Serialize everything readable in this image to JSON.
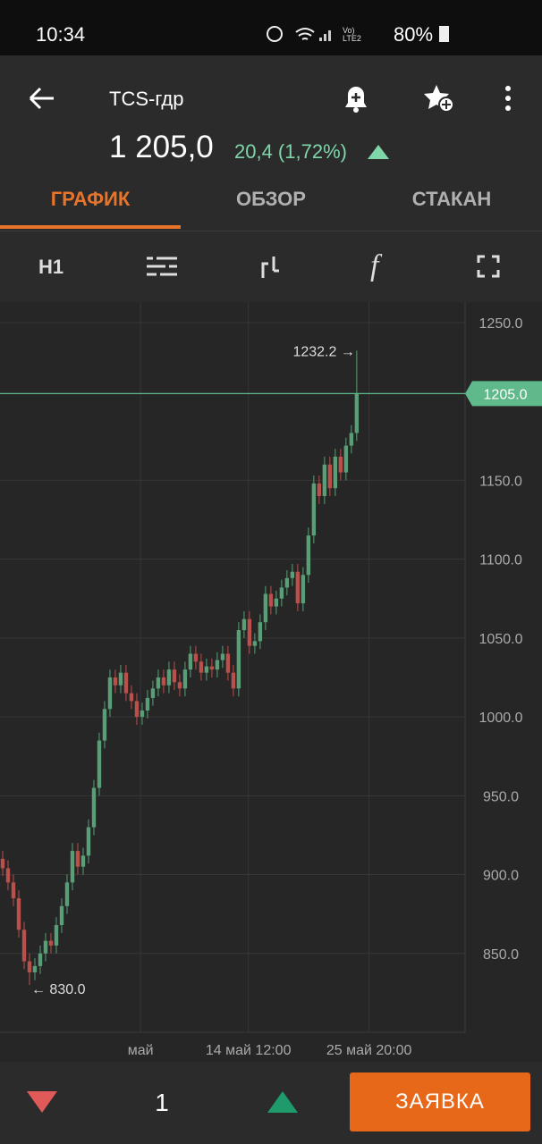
{
  "status_bar": {
    "time": "10:34",
    "network": "Vo) LTE2",
    "battery": "80%"
  },
  "header": {
    "title": "TCS-гдр",
    "price": "1 205,0",
    "change": "20,4 (1,72%)"
  },
  "tabs": [
    "ГРАФИК",
    "ОБЗОР",
    "СТАКАН"
  ],
  "toolbar": {
    "interval": "H1"
  },
  "chart_data": {
    "type": "candlestick",
    "up_color": "#5a9e78",
    "down_color": "#b9504c",
    "open": [
      910,
      904,
      895,
      885,
      865,
      845,
      838,
      842,
      850,
      858,
      855,
      868,
      880,
      895,
      915,
      905,
      912,
      930,
      955,
      985,
      1005,
      1025,
      1020,
      1028,
      1015,
      1010,
      1000,
      1004,
      1012,
      1018,
      1025,
      1020,
      1030,
      1022,
      1018,
      1030,
      1040,
      1035,
      1028,
      1032,
      1030,
      1036,
      1040,
      1028,
      1018,
      1055,
      1062,
      1045,
      1048,
      1060,
      1078,
      1070,
      1075,
      1082,
      1088,
      1092,
      1072,
      1090,
      1115,
      1148,
      1140,
      1160,
      1145,
      1165,
      1155,
      1172,
      1180
    ],
    "high": [
      915,
      909,
      900,
      890,
      870,
      850,
      847,
      855,
      863,
      863,
      873,
      885,
      900,
      920,
      920,
      917,
      935,
      960,
      990,
      1010,
      1030,
      1030,
      1033,
      1033,
      1020,
      1015,
      1009,
      1017,
      1023,
      1030,
      1030,
      1035,
      1035,
      1027,
      1035,
      1045,
      1045,
      1040,
      1037,
      1037,
      1041,
      1045,
      1045,
      1033,
      1060,
      1067,
      1067,
      1053,
      1065,
      1083,
      1083,
      1080,
      1087,
      1093,
      1097,
      1097,
      1095,
      1120,
      1153,
      1153,
      1165,
      1165,
      1170,
      1170,
      1177,
      1185,
      1232.2
    ],
    "low": [
      899,
      890,
      880,
      860,
      840,
      830,
      833,
      837,
      845,
      850,
      850,
      863,
      875,
      890,
      900,
      900,
      907,
      925,
      950,
      980,
      1000,
      1015,
      1015,
      1010,
      1005,
      995,
      995,
      999,
      1007,
      1013,
      1015,
      1015,
      1017,
      1013,
      1013,
      1025,
      1030,
      1023,
      1023,
      1025,
      1025,
      1031,
      1023,
      1013,
      1013,
      1050,
      1040,
      1040,
      1043,
      1055,
      1065,
      1065,
      1070,
      1077,
      1083,
      1067,
      1067,
      1085,
      1110,
      1135,
      1135,
      1140,
      1140,
      1150,
      1150,
      1167,
      1175
    ],
    "close": [
      904,
      895,
      885,
      865,
      845,
      838,
      842,
      850,
      858,
      855,
      868,
      880,
      895,
      915,
      905,
      912,
      930,
      955,
      985,
      1005,
      1025,
      1020,
      1028,
      1015,
      1010,
      1000,
      1004,
      1012,
      1018,
      1025,
      1020,
      1030,
      1022,
      1018,
      1030,
      1040,
      1035,
      1028,
      1032,
      1030,
      1036,
      1040,
      1028,
      1018,
      1055,
      1062,
      1045,
      1048,
      1060,
      1078,
      1070,
      1075,
      1082,
      1088,
      1092,
      1072,
      1090,
      1115,
      1148,
      1140,
      1160,
      1145,
      1165,
      1155,
      1172,
      1180,
      1205
    ],
    "ylim": [
      800,
      1263
    ],
    "yticks": [
      {
        "value": 850,
        "label": "850.0"
      },
      {
        "value": 900,
        "label": "900.0"
      },
      {
        "value": 950,
        "label": "950.0"
      },
      {
        "value": 1000,
        "label": "1000.0"
      },
      {
        "value": 1050,
        "label": "1050.0"
      },
      {
        "value": 1100,
        "label": "1100.0"
      },
      {
        "value": 1150,
        "label": "1150.0"
      },
      {
        "value": 1250,
        "label": "1250.0"
      }
    ],
    "xlim": [
      -0.5,
      86.2
    ],
    "xticks": [
      {
        "value": 25.7,
        "label": "май"
      },
      {
        "value": 45.8,
        "label": "14 май 12:00"
      },
      {
        "value": 68.3,
        "label": "25 май 20:00"
      }
    ],
    "grid": true,
    "last_price": {
      "value": 1205,
      "label": "1205.0",
      "color": "#5fb98a"
    },
    "max_label": "1232.2 →",
    "min_label": "← 830.0"
  },
  "bottom_bar": {
    "quantity": "1",
    "button": "ЗАЯВКА"
  }
}
